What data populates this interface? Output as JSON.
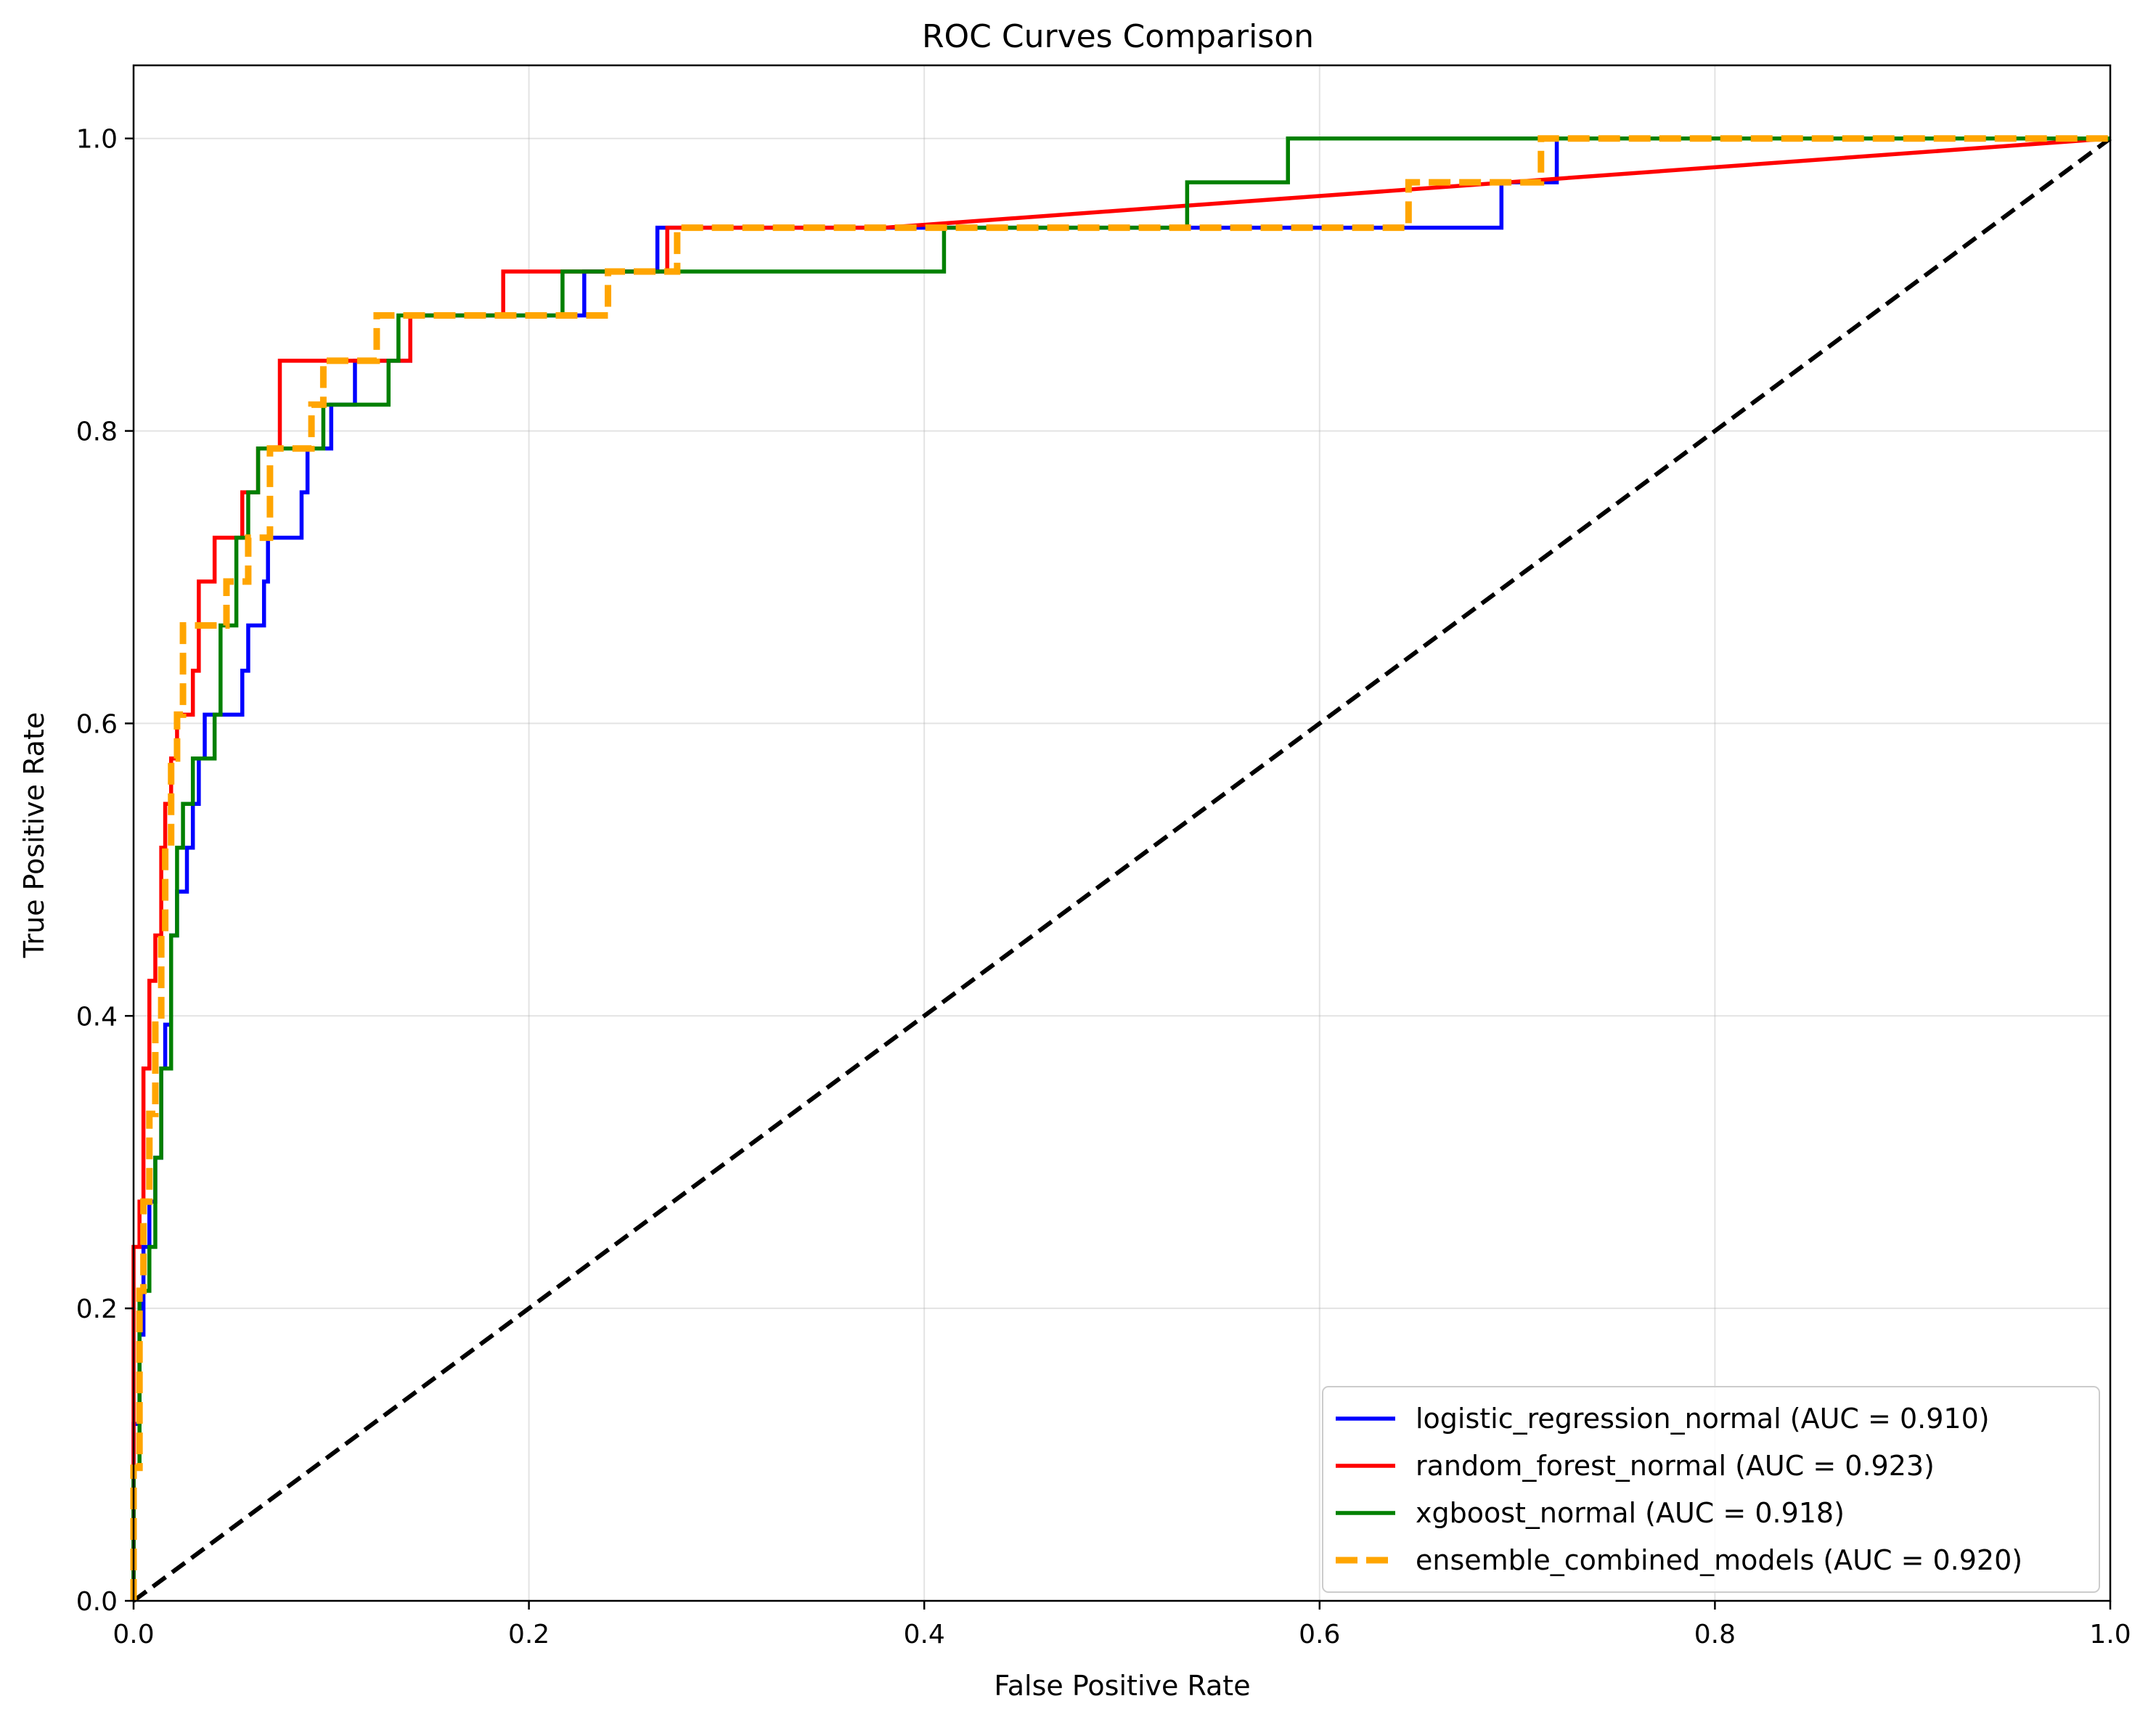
{
  "chart_data": {
    "type": "line",
    "title": "ROC Curves Comparison",
    "xlabel": "False Positive Rate",
    "ylabel": "True Positive Rate",
    "xlim": [
      0.0,
      1.0
    ],
    "ylim": [
      0.0,
      1.05
    ],
    "grid": true,
    "legend_position": "lower-right",
    "x_ticks": [
      "0.0",
      "0.2",
      "0.4",
      "0.6",
      "0.8",
      "1.0"
    ],
    "y_ticks": [
      "0.0",
      "0.2",
      "0.4",
      "0.6",
      "0.8",
      "1.0"
    ],
    "x_tick_values": [
      0.0,
      0.2,
      0.4,
      0.6,
      0.8,
      1.0
    ],
    "y_tick_values": [
      0.0,
      0.2,
      0.4,
      0.6,
      0.8,
      1.0
    ],
    "series": [
      {
        "name": "logistic_regression_normal (AUC = 0.910)",
        "color": "#0000ff",
        "style": "solid",
        "x": [
          0.0,
          0.0,
          0.003,
          0.003,
          0.005,
          0.005,
          0.008,
          0.008,
          0.011,
          0.011,
          0.014,
          0.014,
          0.016,
          0.016,
          0.019,
          0.019,
          0.022,
          0.022,
          0.027,
          0.027,
          0.03,
          0.03,
          0.033,
          0.033,
          0.036,
          0.036,
          0.041,
          0.041,
          0.044,
          0.044,
          0.055,
          0.055,
          0.058,
          0.058,
          0.066,
          0.066,
          0.068,
          0.068,
          0.085,
          0.085,
          0.088,
          0.088,
          0.1,
          0.1,
          0.112,
          0.112,
          0.132,
          0.132,
          0.14,
          0.14,
          0.22,
          0.22,
          0.228,
          0.228,
          0.265,
          0.265,
          0.692,
          0.692,
          0.72,
          0.72,
          1.0
        ],
        "y": [
          0.0,
          0.121,
          0.121,
          0.182,
          0.182,
          0.242,
          0.242,
          0.273,
          0.273,
          0.303,
          0.303,
          0.364,
          0.364,
          0.394,
          0.394,
          0.455,
          0.455,
          0.485,
          0.485,
          0.515,
          0.515,
          0.545,
          0.545,
          0.576,
          0.576,
          0.606,
          0.606,
          0.606,
          0.606,
          0.606,
          0.606,
          0.636,
          0.636,
          0.667,
          0.667,
          0.697,
          0.697,
          0.727,
          0.727,
          0.758,
          0.758,
          0.788,
          0.788,
          0.818,
          0.818,
          0.848,
          0.848,
          0.848,
          0.848,
          0.879,
          0.879,
          0.879,
          0.879,
          0.909,
          0.909,
          0.939,
          0.939,
          0.97,
          0.97,
          1.0,
          1.0
        ]
      },
      {
        "name": "random_forest_normal (AUC = 0.923)",
        "color": "#ff0000",
        "style": "solid",
        "x": [
          0.0,
          0.0,
          0.003,
          0.003,
          0.005,
          0.005,
          0.008,
          0.008,
          0.011,
          0.011,
          0.014,
          0.014,
          0.016,
          0.016,
          0.019,
          0.019,
          0.022,
          0.022,
          0.025,
          0.025,
          0.03,
          0.03,
          0.033,
          0.033,
          0.041,
          0.041,
          0.055,
          0.055,
          0.063,
          0.063,
          0.074,
          0.074,
          0.132,
          0.132,
          0.14,
          0.14,
          0.187,
          0.187,
          0.27,
          0.27,
          0.38,
          1.0
        ],
        "y": [
          0.0,
          0.242,
          0.242,
          0.273,
          0.273,
          0.364,
          0.364,
          0.424,
          0.424,
          0.455,
          0.455,
          0.515,
          0.515,
          0.545,
          0.545,
          0.576,
          0.576,
          0.606,
          0.606,
          0.606,
          0.606,
          0.636,
          0.636,
          0.697,
          0.697,
          0.727,
          0.727,
          0.758,
          0.758,
          0.788,
          0.788,
          0.848,
          0.848,
          0.848,
          0.848,
          0.879,
          0.879,
          0.909,
          0.909,
          0.939,
          0.939,
          1.0
        ]
      },
      {
        "name": "xgboost_normal (AUC = 0.918)",
        "color": "#008000",
        "style": "solid",
        "x": [
          0.0,
          0.0,
          0.003,
          0.003,
          0.008,
          0.008,
          0.011,
          0.011,
          0.014,
          0.014,
          0.019,
          0.019,
          0.022,
          0.022,
          0.025,
          0.025,
          0.03,
          0.03,
          0.036,
          0.036,
          0.041,
          0.041,
          0.044,
          0.044,
          0.052,
          0.052,
          0.058,
          0.058,
          0.063,
          0.063,
          0.074,
          0.074,
          0.096,
          0.096,
          0.129,
          0.129,
          0.134,
          0.134,
          0.217,
          0.217,
          0.41,
          0.41,
          0.533,
          0.533,
          0.584,
          0.584,
          1.0
        ],
        "y": [
          0.0,
          0.091,
          0.091,
          0.212,
          0.212,
          0.242,
          0.242,
          0.303,
          0.303,
          0.364,
          0.364,
          0.455,
          0.455,
          0.515,
          0.515,
          0.545,
          0.545,
          0.576,
          0.576,
          0.576,
          0.576,
          0.606,
          0.606,
          0.667,
          0.667,
          0.727,
          0.727,
          0.758,
          0.758,
          0.788,
          0.788,
          0.788,
          0.788,
          0.818,
          0.818,
          0.848,
          0.848,
          0.879,
          0.879,
          0.909,
          0.909,
          0.939,
          0.939,
          0.97,
          0.97,
          1.0,
          1.0
        ]
      },
      {
        "name": "ensemble_combined_models (AUC = 0.920)",
        "color": "#ffa500",
        "style": "dashed",
        "x": [
          0.0,
          0.0,
          0.003,
          0.003,
          0.005,
          0.005,
          0.008,
          0.008,
          0.011,
          0.011,
          0.014,
          0.014,
          0.016,
          0.016,
          0.019,
          0.019,
          0.022,
          0.022,
          0.025,
          0.025,
          0.036,
          0.036,
          0.047,
          0.047,
          0.058,
          0.058,
          0.069,
          0.069,
          0.09,
          0.09,
          0.096,
          0.096,
          0.118,
          0.118,
          0.123,
          0.123,
          0.24,
          0.24,
          0.275,
          0.275,
          0.645,
          0.645,
          0.712,
          0.712,
          1.0
        ],
        "y": [
          0.0,
          0.091,
          0.091,
          0.212,
          0.212,
          0.273,
          0.273,
          0.333,
          0.333,
          0.394,
          0.394,
          0.455,
          0.455,
          0.515,
          0.515,
          0.576,
          0.576,
          0.606,
          0.606,
          0.667,
          0.667,
          0.667,
          0.667,
          0.697,
          0.697,
          0.727,
          0.727,
          0.788,
          0.788,
          0.818,
          0.818,
          0.848,
          0.848,
          0.848,
          0.848,
          0.879,
          0.879,
          0.909,
          0.909,
          0.939,
          0.939,
          0.97,
          0.97,
          1.0,
          1.0
        ]
      }
    ],
    "reference_line": {
      "x": [
        0.0,
        1.0
      ],
      "y": [
        0.0,
        1.0
      ],
      "color": "#000000",
      "style": "dashed"
    }
  }
}
